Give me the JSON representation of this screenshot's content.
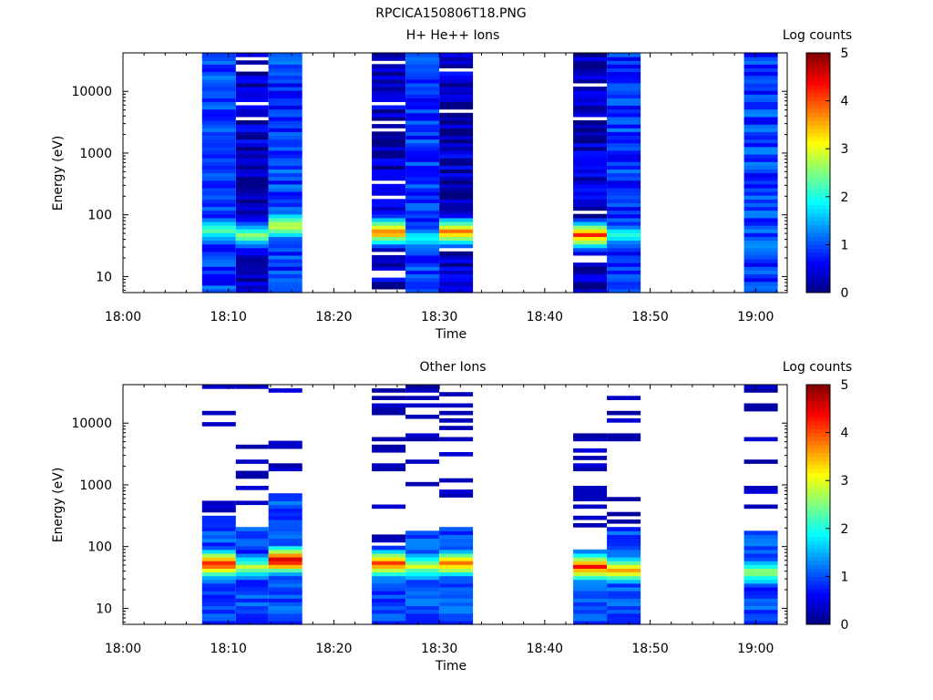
{
  "figure_title": "RPCICA150806T18.PNG",
  "chart_data": [
    {
      "type": "heatmap",
      "title": "H+ He++ Ions",
      "xlabel": "Time",
      "ylabel": "Energy (eV)",
      "x_ticks": [
        "18:00",
        "18:10",
        "18:20",
        "18:30",
        "18:40",
        "18:50",
        "19:00"
      ],
      "xlim_minutes": [
        0,
        63
      ],
      "ylim": [
        5.5,
        42000
      ],
      "yscale": "log",
      "y_ticks": [
        "10",
        "100",
        "1000",
        "10000"
      ],
      "colorbar": {
        "label": "Log counts",
        "range": [
          0,
          5
        ],
        "ticks": [
          "0",
          "1",
          "2",
          "3",
          "4",
          "5"
        ]
      },
      "scans": [
        {
          "start": 7.5,
          "end": 10.7,
          "profile": "hot_mid",
          "peak_log_e": 1.72,
          "peak_val": 2.2,
          "sat": 1
        },
        {
          "start": 10.7,
          "end": 13.8,
          "profile": "dark",
          "peak_log_e": 1.65,
          "peak_val": 2.5,
          "sat": 1
        },
        {
          "start": 13.8,
          "end": 17.0,
          "profile": "hot_mid",
          "peak_log_e": 1.8,
          "peak_val": 3.0,
          "sat": 1
        },
        {
          "start": 23.6,
          "end": 26.8,
          "profile": "dark",
          "peak_log_e": 1.7,
          "peak_val": 3.8,
          "sat": 1
        },
        {
          "start": 26.8,
          "end": 30.0,
          "profile": "hot_mid",
          "peak_log_e": 1.6,
          "peak_val": 1.8,
          "sat": 1
        },
        {
          "start": 30.0,
          "end": 33.2,
          "profile": "dark",
          "peak_log_e": 1.7,
          "peak_val": 3.8,
          "sat": 1
        },
        {
          "start": 42.7,
          "end": 45.9,
          "profile": "dark",
          "peak_log_e": 1.65,
          "peak_val": 4.0,
          "sat": 1
        },
        {
          "start": 45.9,
          "end": 49.1,
          "profile": "hot_mid",
          "peak_log_e": 1.65,
          "peak_val": 2.0,
          "sat": 1
        },
        {
          "start": 58.9,
          "end": 62.1,
          "profile": "hot_mid",
          "peak_log_e": 1.5,
          "peak_val": 1.2,
          "sat": 1
        }
      ]
    },
    {
      "type": "heatmap",
      "title": "Other Ions",
      "xlabel": "Time",
      "ylabel": "Energy (eV)",
      "x_ticks": [
        "18:00",
        "18:10",
        "18:20",
        "18:30",
        "18:40",
        "18:50",
        "19:00"
      ],
      "xlim_minutes": [
        0,
        63
      ],
      "ylim": [
        5.5,
        42000
      ],
      "yscale": "log",
      "y_ticks": [
        "10",
        "100",
        "1000",
        "10000"
      ],
      "colorbar": {
        "label": "Log counts",
        "range": [
          0,
          5
        ],
        "ticks": [
          "0",
          "1",
          "2",
          "3",
          "4",
          "5"
        ]
      },
      "scans": [
        {
          "start": 7.5,
          "end": 10.7,
          "profile": "sparse",
          "peak_log_e": 1.7,
          "peak_val": 4.2,
          "sat": 2.48
        },
        {
          "start": 10.7,
          "end": 13.8,
          "profile": "sparse",
          "peak_log_e": 1.65,
          "peak_val": 2.6,
          "sat": 2.3
        },
        {
          "start": 13.8,
          "end": 17.0,
          "profile": "sparse",
          "peak_log_e": 1.75,
          "peak_val": 4.6,
          "sat": 2.85
        },
        {
          "start": 23.6,
          "end": 26.8,
          "profile": "sparse",
          "peak_log_e": 1.7,
          "peak_val": 4.0,
          "sat": 2.0
        },
        {
          "start": 26.8,
          "end": 30.0,
          "profile": "sparse",
          "peak_log_e": 1.65,
          "peak_val": 2.8,
          "sat": 2.25
        },
        {
          "start": 30.0,
          "end": 33.2,
          "profile": "sparse",
          "peak_log_e": 1.7,
          "peak_val": 3.8,
          "sat": 2.3
        },
        {
          "start": 42.7,
          "end": 45.9,
          "profile": "sparse",
          "peak_log_e": 1.65,
          "peak_val": 4.2,
          "sat": 1.85
        },
        {
          "start": 45.9,
          "end": 49.1,
          "profile": "sparse",
          "peak_log_e": 1.6,
          "peak_val": 3.5,
          "sat": 2.3
        },
        {
          "start": 58.9,
          "end": 62.1,
          "profile": "sparse",
          "peak_log_e": 1.55,
          "peak_val": 2.6,
          "sat": 2.2
        }
      ]
    }
  ]
}
